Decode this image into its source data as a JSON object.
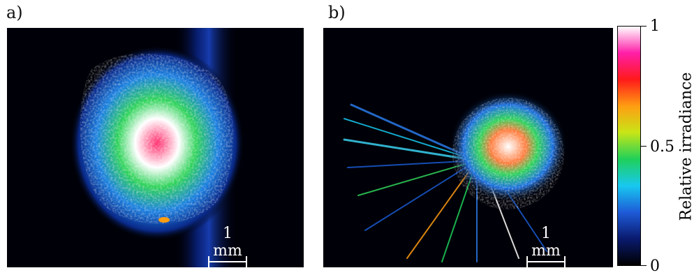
{
  "panels": [
    {
      "label": "a)",
      "scale_label": "1 mm"
    },
    {
      "label": "b)",
      "scale_label": "1 mm"
    }
  ],
  "colorbar": {
    "title": "Relative irradiance",
    "ticks": [
      "1",
      "0.5",
      "0"
    ],
    "gradient_colors": [
      "#000000",
      "#0a1a6e",
      "#1e5bd8",
      "#18c8f0",
      "#1fd05a",
      "#c8e617",
      "#ff9d12",
      "#ff1a1a",
      "#ff1ea8",
      "#ffffff"
    ]
  }
}
